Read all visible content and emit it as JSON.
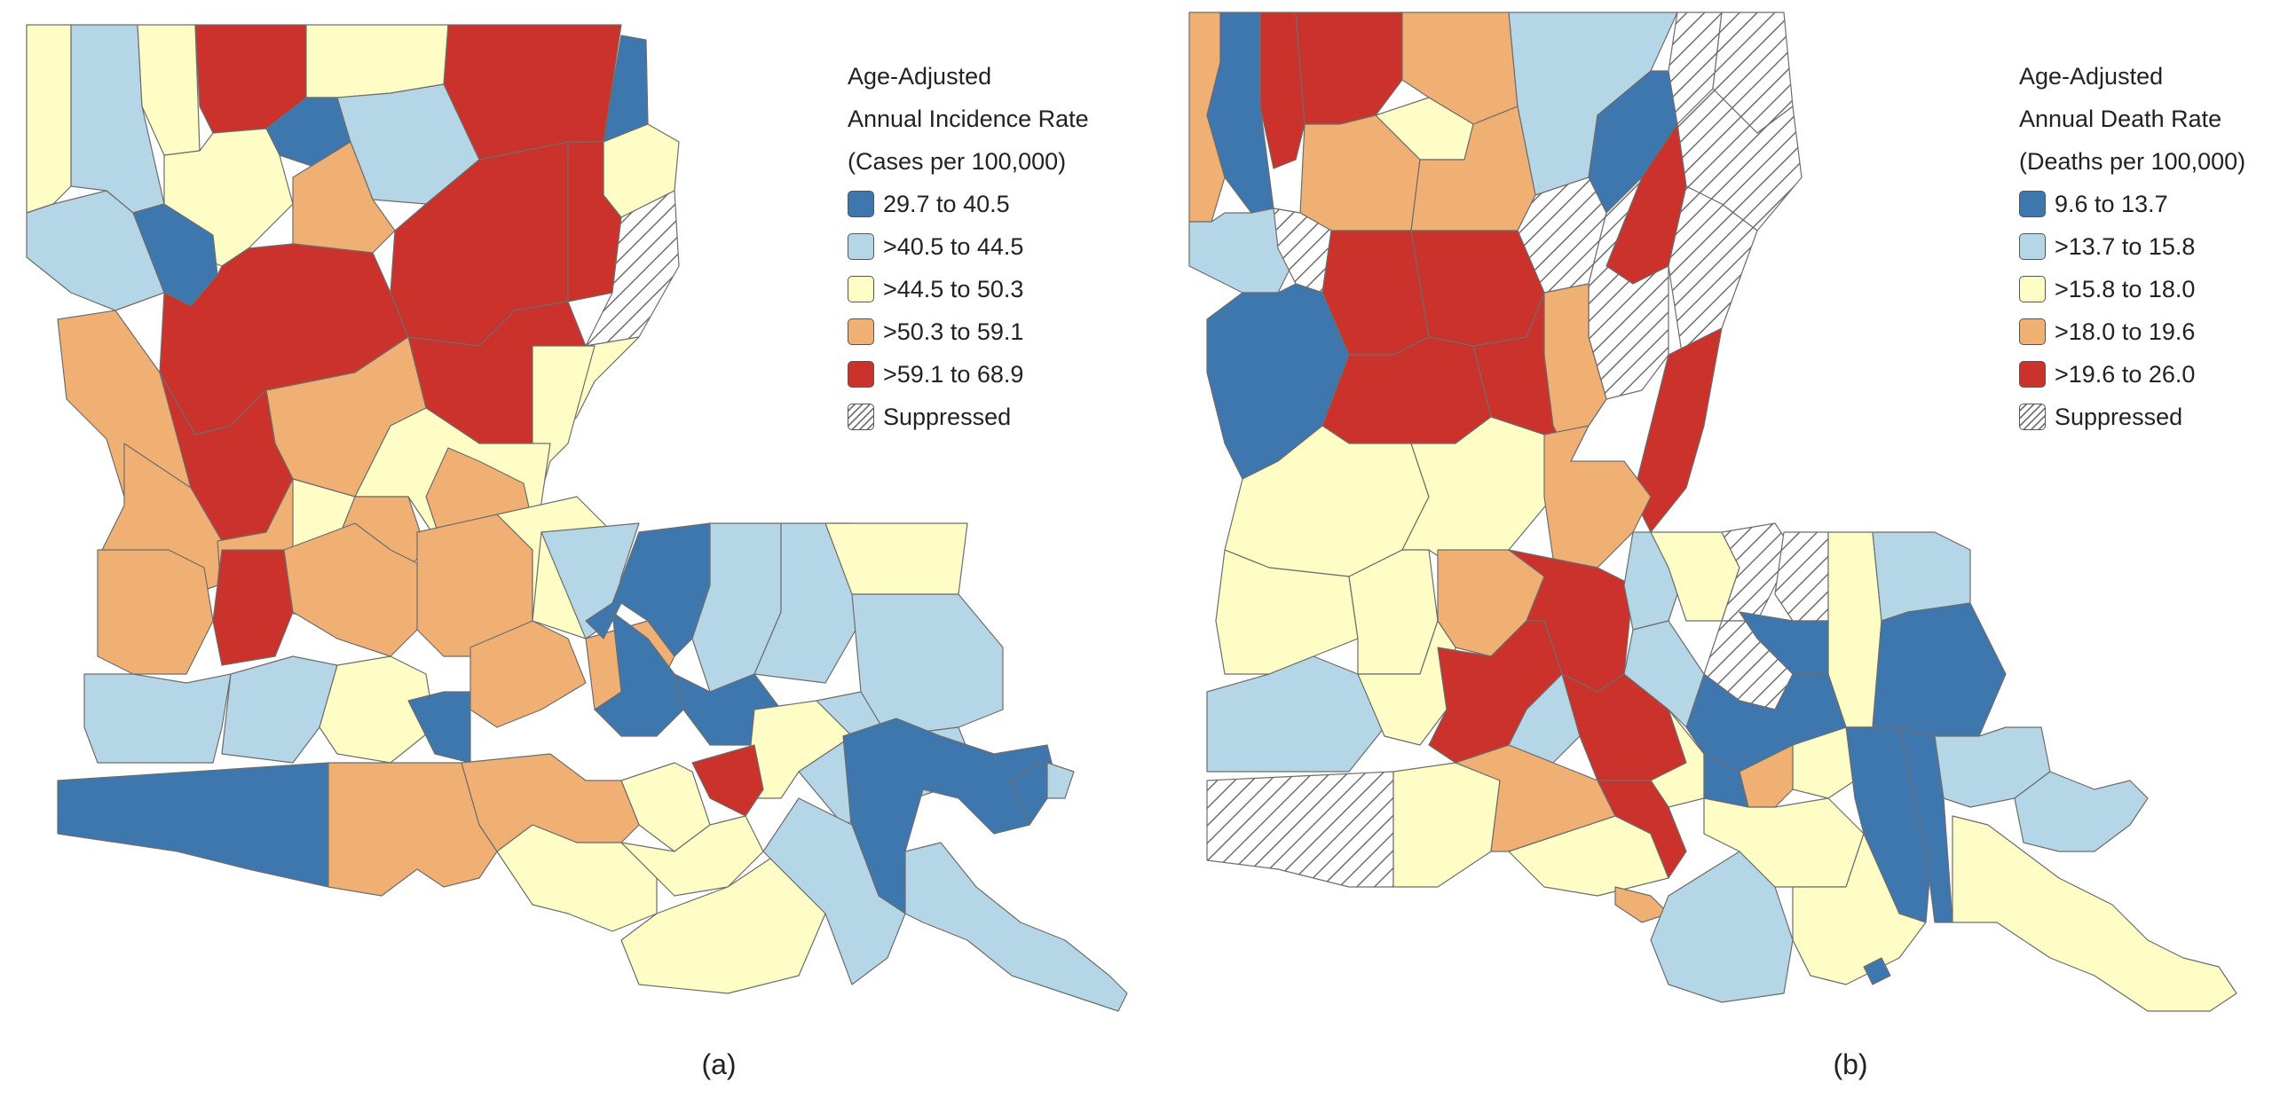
{
  "colors": {
    "dark_blue": "#3e76ae",
    "light_blue": "#b5d6e6",
    "light_yellow": "#fefdc6",
    "orange": "#f0b073",
    "red": "#cb322c",
    "suppressed": "hatched"
  },
  "panels": [
    {
      "caption": "(a)",
      "legend": {
        "title_lines": [
          "Age-Adjusted",
          "Annual Incidence Rate",
          "(Cases per 100,000)"
        ],
        "items": [
          {
            "label": "29.7 to 40.5",
            "color": "#3e76ae"
          },
          {
            "label": ">40.5 to 44.5",
            "color": "#b5d6e6"
          },
          {
            "label": ">44.5 to 50.3",
            "color": "#fefdc6"
          },
          {
            "label": ">50.3 to 59.1",
            "color": "#f0b073"
          },
          {
            "label": ">59.1 to 68.9",
            "color": "#cb322c"
          },
          {
            "label": "Suppressed",
            "color": "hatched"
          }
        ]
      }
    },
    {
      "caption": "(b)",
      "legend": {
        "title_lines": [
          "Age-Adjusted",
          "Annual Death Rate",
          "(Deaths per 100,000)"
        ],
        "items": [
          {
            "label": "9.6 to 13.7",
            "color": "#3e76ae"
          },
          {
            "label": ">13.7 to 15.8",
            "color": "#b5d6e6"
          },
          {
            "label": ">15.8 to 18.0",
            "color": "#fefdc6"
          },
          {
            "label": ">18.0 to 19.6",
            "color": "#f0b073"
          },
          {
            "label": ">19.6 to 26.0",
            "color": "#cb322c"
          },
          {
            "label": "Suppressed",
            "color": "hatched"
          }
        ]
      }
    }
  ]
}
